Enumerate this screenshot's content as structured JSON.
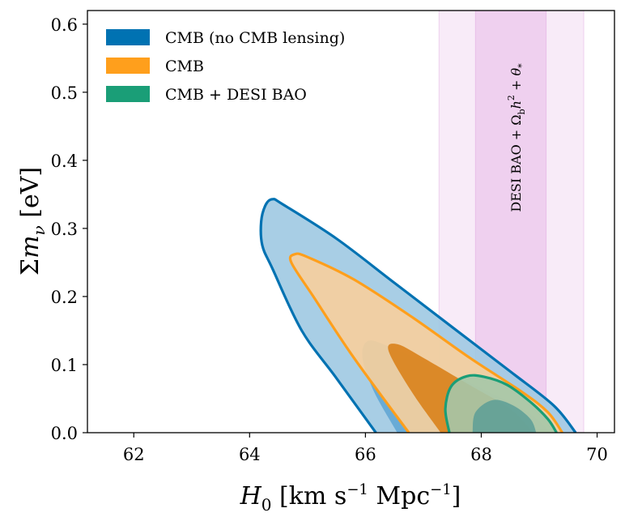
{
  "chart_data": {
    "type": "contour",
    "title": "",
    "xlabel": "H_0 [km s^-1 Mpc^-1]",
    "ylabel": "Σm_ν [eV]",
    "xlim": [
      61.2,
      70.3
    ],
    "ylim": [
      0.0,
      0.62
    ],
    "xticks": [
      62,
      64,
      66,
      68,
      70
    ],
    "yticks": [
      0.0,
      0.1,
      0.2,
      0.3,
      0.4,
      0.5,
      0.6
    ],
    "xtick_labels": [
      "62",
      "64",
      "66",
      "68",
      "70"
    ],
    "ytick_labels": [
      "0.0",
      "0.1",
      "0.2",
      "0.3",
      "0.4",
      "0.5",
      "0.6"
    ],
    "legend_position": "top-left",
    "band": {
      "label": "DESI BAO + Ω_b h² + θ_*",
      "color": "#cc66cc",
      "inner_range": [
        67.9,
        69.12
      ],
      "outer_range": [
        67.27,
        69.77
      ]
    },
    "series": [
      {
        "name": "CMB (no CMB lensing)",
        "color": "#0072b2",
        "outer_fill": "#9fc9e2",
        "inner_fill": "#5ea5d3",
        "contour_95": [
          [
            66.18,
            0.0
          ],
          [
            65.5,
            0.08
          ],
          [
            64.9,
            0.15
          ],
          [
            64.4,
            0.24
          ],
          [
            64.22,
            0.275
          ],
          [
            64.2,
            0.31
          ],
          [
            64.28,
            0.335
          ],
          [
            64.4,
            0.343
          ],
          [
            64.58,
            0.335
          ],
          [
            65.5,
            0.285
          ],
          [
            66.5,
            0.22
          ],
          [
            67.5,
            0.155
          ],
          [
            68.5,
            0.09
          ],
          [
            69.25,
            0.04
          ],
          [
            69.63,
            0.0
          ]
        ],
        "contour_68": [
          [
            66.55,
            0.0
          ],
          [
            66.15,
            0.06
          ],
          [
            65.95,
            0.11
          ],
          [
            66.05,
            0.135
          ],
          [
            66.45,
            0.125
          ],
          [
            67.25,
            0.095
          ],
          [
            68.0,
            0.065
          ],
          [
            68.8,
            0.03
          ],
          [
            69.2,
            0.0
          ]
        ]
      },
      {
        "name": "CMB",
        "color": "#ff9f1c",
        "outer_fill": "#f7cf9c",
        "inner_fill": "#d87c13",
        "contour_95": [
          [
            66.75,
            0.0
          ],
          [
            65.8,
            0.11
          ],
          [
            65.1,
            0.2
          ],
          [
            64.72,
            0.25
          ],
          [
            64.78,
            0.262
          ],
          [
            65.0,
            0.258
          ],
          [
            65.8,
            0.225
          ],
          [
            66.8,
            0.17
          ],
          [
            67.8,
            0.11
          ],
          [
            68.7,
            0.06
          ],
          [
            69.15,
            0.03
          ],
          [
            69.4,
            0.0
          ]
        ],
        "contour_68": [
          [
            67.3,
            0.0
          ],
          [
            66.8,
            0.06
          ],
          [
            66.4,
            0.12
          ],
          [
            66.55,
            0.13
          ],
          [
            67.0,
            0.11
          ],
          [
            67.8,
            0.07
          ],
          [
            68.5,
            0.035
          ],
          [
            68.9,
            0.0
          ]
        ]
      },
      {
        "name": "CMB + DESI BAO",
        "color": "#1a9e77",
        "outer_fill": "#a5c7a9",
        "inner_fill": "#5c9e97",
        "contour_95": [
          [
            67.45,
            0.0
          ],
          [
            67.38,
            0.035
          ],
          [
            67.48,
            0.068
          ],
          [
            67.75,
            0.083
          ],
          [
            68.05,
            0.082
          ],
          [
            68.45,
            0.07
          ],
          [
            68.85,
            0.045
          ],
          [
            69.15,
            0.02
          ],
          [
            69.3,
            0.0
          ]
        ],
        "contour_68": [
          [
            67.85,
            0.0
          ],
          [
            67.9,
            0.03
          ],
          [
            68.2,
            0.048
          ],
          [
            68.55,
            0.04
          ],
          [
            68.85,
            0.02
          ],
          [
            68.95,
            0.0
          ]
        ]
      }
    ]
  }
}
